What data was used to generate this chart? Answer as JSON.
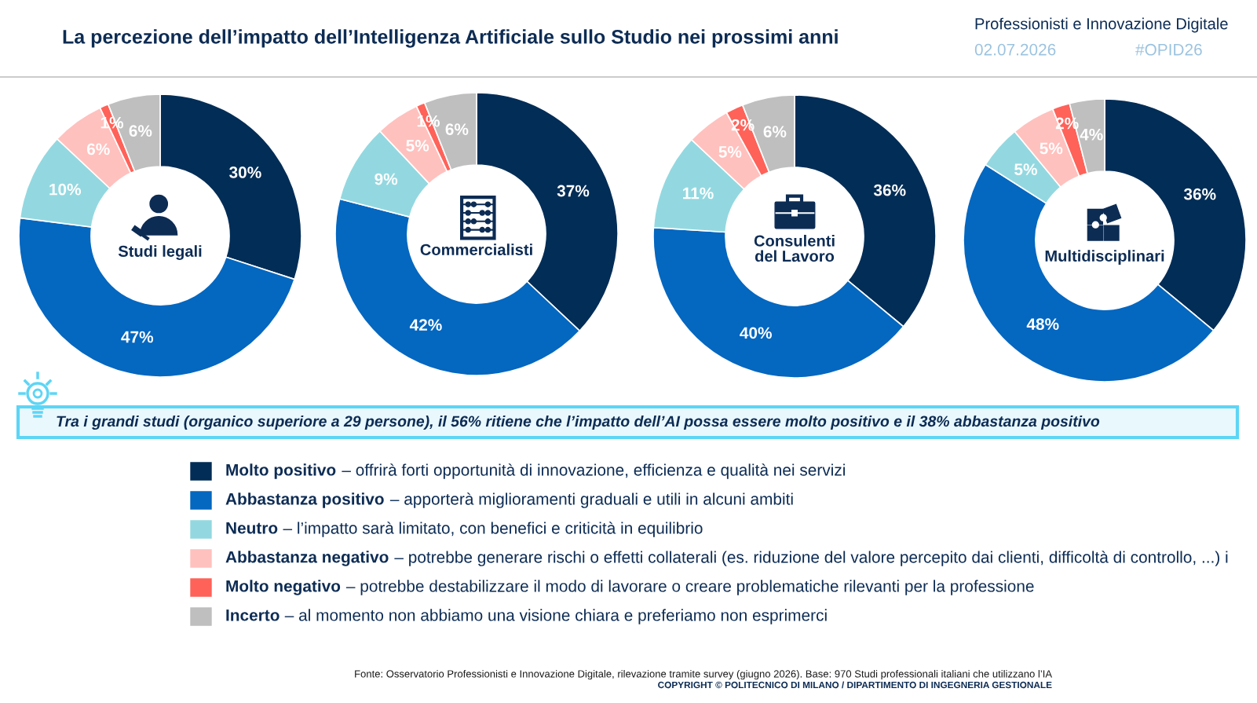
{
  "chart_data": [
    {
      "type": "other",
      "title": "La percezione dell’impatto dell’Intelligenza Artificiale sullo Studio nei prossimi anni",
      "annotations": [
        "Professionisti e Innovazione Digitale",
        "02.07.2026",
        "#OPID26",
        "Tra i grandi studi (organico superiore a 29 persone), il 56% ritiene che l’impatto dell’AI possa essere molto positivo e il 38% abbastanza positivo",
        "Fonte: Osservatorio Professionisti e Innovazione Digitale, rilevazione tramite survey (giugno 2026). Base: 970 Studi professionali italiani che utilizzano l’IA",
        "COPYRIGHT © POLITECNICO DI MILANO / DIPARTIMENTO DI INGEGNERIA GESTIONALE"
      ]
    },
    {
      "type": "donut",
      "title": "Studi legali",
      "categories": [
        "Molto positivo",
        "Abbastanza positivo",
        "Neutro",
        "Abbastanza negativo",
        "Molto negativo",
        "Incerto"
      ],
      "values": [
        30,
        47,
        10,
        6,
        1,
        6
      ],
      "colors": [
        "#022d56",
        "#0467c0",
        "#93d8e0",
        "#ffc1be",
        "#ff6259",
        "#bfbfbf"
      ],
      "value_labels": [
        "30%",
        "47%",
        "10%",
        "6%",
        "1%",
        "6%"
      ],
      "legend": "bottom",
      "annotations": [
        "– offrirà forti opportunità di innovazione, efficienza e qualità nei servizi",
        "– apporterà miglioramenti graduali e utili in alcuni ambiti",
        "– l’impatto sarà limitato, con benefici e criticità in equilibrio",
        "– potrebbe generare rischi o effetti collaterali (es. riduzione del valore percepito dai clienti, difficoltà di controllo, ...) i",
        "– potrebbe destabilizzare il modo di lavorare o creare problematiche rilevanti per la professione",
        "– al momento non abbiamo una visione chiara e preferiamo non esprimerci"
      ]
    },
    {
      "type": "donut",
      "title": "Commercialisti",
      "values": [
        37,
        42,
        9,
        5,
        1,
        6
      ],
      "colors": [
        "#022d56",
        "#0467c0",
        "#93d8e0",
        "#ffc1be",
        "#ff6259",
        "#bfbfbf"
      ],
      "value_labels": [
        "37%",
        "42%",
        "9%",
        "5%",
        "1%",
        "6%"
      ]
    },
    {
      "type": "donut",
      "title": "Consulenti del Lavoro",
      "values": [
        36,
        40,
        11,
        5,
        2,
        6
      ],
      "colors": [
        "#022d56",
        "#0467c0",
        "#93d8e0",
        "#ffc1be",
        "#ff6259",
        "#bfbfbf"
      ],
      "value_labels": [
        "36%",
        "40%",
        "11%",
        "5%",
        "2%",
        "6%"
      ]
    },
    {
      "type": "donut",
      "title": "Multidisciplinari",
      "values": [
        36,
        48,
        5,
        5,
        2,
        4
      ],
      "colors": [
        "#022d56",
        "#0467c0",
        "#93d8e0",
        "#ffc1be",
        "#ff6259",
        "#bfbfbf"
      ],
      "value_labels": [
        "36%",
        "48%",
        "5%",
        "5%",
        "2%",
        "4%"
      ]
    }
  ]
}
